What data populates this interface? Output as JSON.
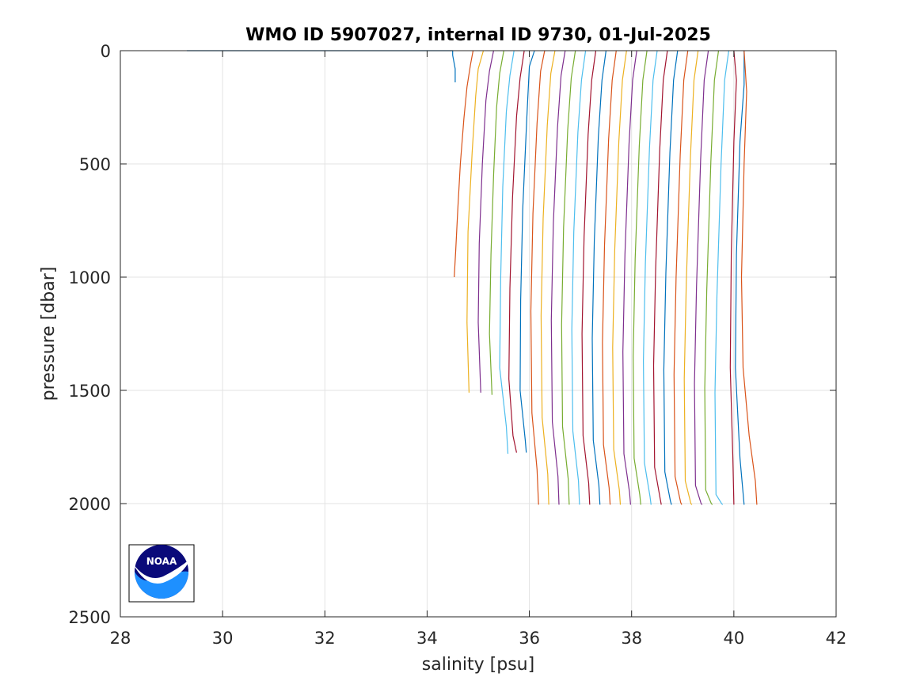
{
  "chart_data": {
    "type": "line",
    "title": "WMO ID 5907027, internal ID 9730, 01-Jul-2025",
    "xlabel": "salinity [psu]",
    "ylabel": "pressure [dbar]",
    "xlim": [
      28,
      42
    ],
    "ylim": [
      0,
      2500
    ],
    "y_reversed": true,
    "grid": true,
    "legend": "none",
    "x_ticks": [
      "28",
      "30",
      "32",
      "34",
      "36",
      "38",
      "40",
      "42"
    ],
    "y_ticks": [
      "0",
      "500",
      "1000",
      "1500",
      "2000",
      "2500"
    ],
    "series_colors": [
      "#0072BD",
      "#D95319",
      "#EDB120",
      "#7E2F8E",
      "#77AC30",
      "#4DBEEE",
      "#A2142F"
    ],
    "series": [
      {
        "values": [
          [
            29.3,
            0
          ],
          [
            34.5,
            0
          ],
          [
            34.5,
            20
          ],
          [
            34.55,
            80
          ],
          [
            34.55,
            140
          ]
        ]
      },
      {
        "values": [
          [
            34.9,
            0
          ],
          [
            34.85,
            60
          ],
          [
            34.78,
            160
          ],
          [
            34.72,
            300
          ],
          [
            34.65,
            500
          ],
          [
            34.6,
            700
          ],
          [
            34.56,
            880
          ],
          [
            34.53,
            1000
          ]
        ]
      },
      {
        "values": [
          [
            35.1,
            0
          ],
          [
            35.0,
            80
          ],
          [
            34.95,
            200
          ],
          [
            34.88,
            450
          ],
          [
            34.8,
            800
          ],
          [
            34.78,
            1200
          ],
          [
            34.82,
            1510
          ]
        ]
      },
      {
        "values": [
          [
            35.3,
            0
          ],
          [
            35.22,
            90
          ],
          [
            35.15,
            220
          ],
          [
            35.08,
            500
          ],
          [
            35.02,
            850
          ],
          [
            35.0,
            1200
          ],
          [
            35.05,
            1510
          ]
        ]
      },
      {
        "values": [
          [
            35.5,
            0
          ],
          [
            35.42,
            100
          ],
          [
            35.36,
            250
          ],
          [
            35.3,
            550
          ],
          [
            35.25,
            900
          ],
          [
            35.22,
            1250
          ],
          [
            35.27,
            1520
          ]
        ]
      },
      {
        "values": [
          [
            35.7,
            0
          ],
          [
            35.62,
            110
          ],
          [
            35.55,
            270
          ],
          [
            35.48,
            600
          ],
          [
            35.44,
            1000
          ],
          [
            35.42,
            1400
          ],
          [
            35.55,
            1660
          ],
          [
            35.58,
            1780
          ]
        ]
      },
      {
        "values": [
          [
            35.9,
            0
          ],
          [
            35.82,
            120
          ],
          [
            35.75,
            290
          ],
          [
            35.67,
            650
          ],
          [
            35.62,
            1050
          ],
          [
            35.6,
            1450
          ],
          [
            35.68,
            1700
          ],
          [
            35.75,
            1775
          ]
        ]
      },
      {
        "values": [
          [
            36.1,
            0
          ],
          [
            36.0,
            70
          ],
          [
            35.95,
            300
          ],
          [
            35.87,
            700
          ],
          [
            35.83,
            1100
          ],
          [
            35.82,
            1500
          ],
          [
            35.92,
            1720
          ],
          [
            35.94,
            1775
          ]
        ]
      },
      {
        "values": [
          [
            36.3,
            0
          ],
          [
            36.22,
            90
          ],
          [
            36.15,
            320
          ],
          [
            36.07,
            720
          ],
          [
            36.03,
            1150
          ],
          [
            36.05,
            1600
          ],
          [
            36.15,
            1850
          ],
          [
            36.18,
            2005
          ]
        ]
      },
      {
        "values": [
          [
            36.5,
            0
          ],
          [
            36.42,
            100
          ],
          [
            36.35,
            330
          ],
          [
            36.27,
            740
          ],
          [
            36.23,
            1170
          ],
          [
            36.25,
            1620
          ],
          [
            36.36,
            1870
          ],
          [
            36.38,
            2005
          ]
        ]
      },
      {
        "values": [
          [
            36.7,
            0
          ],
          [
            36.62,
            110
          ],
          [
            36.55,
            340
          ],
          [
            36.47,
            760
          ],
          [
            36.43,
            1190
          ],
          [
            36.45,
            1640
          ],
          [
            36.56,
            1880
          ],
          [
            36.58,
            2005
          ]
        ]
      },
      {
        "values": [
          [
            36.9,
            0
          ],
          [
            36.82,
            120
          ],
          [
            36.75,
            350
          ],
          [
            36.67,
            780
          ],
          [
            36.63,
            1210
          ],
          [
            36.65,
            1660
          ],
          [
            36.76,
            1890
          ],
          [
            36.78,
            2005
          ]
        ]
      },
      {
        "values": [
          [
            37.1,
            0
          ],
          [
            37.02,
            130
          ],
          [
            36.95,
            360
          ],
          [
            36.87,
            800
          ],
          [
            36.83,
            1230
          ],
          [
            36.85,
            1680
          ],
          [
            36.96,
            1900
          ],
          [
            36.98,
            2005
          ]
        ]
      },
      {
        "values": [
          [
            37.3,
            0
          ],
          [
            37.22,
            130
          ],
          [
            37.15,
            370
          ],
          [
            37.07,
            820
          ],
          [
            37.03,
            1250
          ],
          [
            37.05,
            1700
          ],
          [
            37.16,
            1910
          ],
          [
            37.18,
            2005
          ]
        ]
      },
      {
        "values": [
          [
            37.5,
            0
          ],
          [
            37.42,
            130
          ],
          [
            37.35,
            380
          ],
          [
            37.27,
            840
          ],
          [
            37.23,
            1270
          ],
          [
            37.25,
            1720
          ],
          [
            37.36,
            1920
          ],
          [
            37.38,
            2005
          ]
        ]
      },
      {
        "values": [
          [
            37.7,
            0
          ],
          [
            37.62,
            130
          ],
          [
            37.55,
            390
          ],
          [
            37.47,
            860
          ],
          [
            37.43,
            1290
          ],
          [
            37.45,
            1740
          ],
          [
            37.56,
            1930
          ],
          [
            37.58,
            2005
          ]
        ]
      },
      {
        "values": [
          [
            37.9,
            0
          ],
          [
            37.82,
            130
          ],
          [
            37.75,
            400
          ],
          [
            37.67,
            880
          ],
          [
            37.63,
            1310
          ],
          [
            37.65,
            1760
          ],
          [
            37.76,
            1940
          ],
          [
            37.78,
            2005
          ]
        ]
      },
      {
        "values": [
          [
            38.1,
            0
          ],
          [
            38.02,
            130
          ],
          [
            37.95,
            410
          ],
          [
            37.87,
            900
          ],
          [
            37.83,
            1330
          ],
          [
            37.85,
            1780
          ],
          [
            37.96,
            1950
          ],
          [
            37.98,
            2005
          ]
        ]
      },
      {
        "values": [
          [
            38.3,
            0
          ],
          [
            38.22,
            130
          ],
          [
            38.15,
            420
          ],
          [
            38.07,
            920
          ],
          [
            38.03,
            1350
          ],
          [
            38.05,
            1800
          ],
          [
            38.16,
            1960
          ],
          [
            38.18,
            2005
          ]
        ]
      },
      {
        "values": [
          [
            38.5,
            0
          ],
          [
            38.42,
            130
          ],
          [
            38.35,
            430
          ],
          [
            38.27,
            940
          ],
          [
            38.23,
            1370
          ],
          [
            38.25,
            1820
          ],
          [
            38.36,
            1970
          ],
          [
            38.38,
            2005
          ]
        ]
      },
      {
        "values": [
          [
            38.7,
            0
          ],
          [
            38.62,
            130
          ],
          [
            38.55,
            440
          ],
          [
            38.47,
            960
          ],
          [
            38.43,
            1390
          ],
          [
            38.45,
            1840
          ],
          [
            38.56,
            1980
          ],
          [
            38.58,
            2005
          ]
        ]
      },
      {
        "values": [
          [
            38.9,
            0
          ],
          [
            38.82,
            130
          ],
          [
            38.75,
            450
          ],
          [
            38.67,
            980
          ],
          [
            38.63,
            1410
          ],
          [
            38.65,
            1860
          ],
          [
            38.76,
            1990
          ],
          [
            38.78,
            2005
          ]
        ]
      },
      {
        "values": [
          [
            39.1,
            0
          ],
          [
            39.02,
            130
          ],
          [
            38.95,
            460
          ],
          [
            38.87,
            1000
          ],
          [
            38.83,
            1430
          ],
          [
            38.85,
            1880
          ],
          [
            38.96,
            1995
          ],
          [
            38.98,
            2005
          ]
        ]
      },
      {
        "values": [
          [
            39.3,
            0
          ],
          [
            39.22,
            130
          ],
          [
            39.15,
            470
          ],
          [
            39.07,
            1020
          ],
          [
            39.03,
            1450
          ],
          [
            39.05,
            1900
          ],
          [
            39.16,
            2000
          ],
          [
            39.18,
            2005
          ]
        ]
      },
      {
        "values": [
          [
            39.5,
            0
          ],
          [
            39.42,
            130
          ],
          [
            39.35,
            480
          ],
          [
            39.27,
            1040
          ],
          [
            39.23,
            1470
          ],
          [
            39.25,
            1920
          ],
          [
            39.36,
            2000
          ],
          [
            39.38,
            2005
          ]
        ]
      },
      {
        "values": [
          [
            39.7,
            0
          ],
          [
            39.62,
            130
          ],
          [
            39.55,
            490
          ],
          [
            39.47,
            1060
          ],
          [
            39.43,
            1490
          ],
          [
            39.45,
            1940
          ],
          [
            39.56,
            2000
          ],
          [
            39.58,
            2005
          ]
        ]
      },
      {
        "values": [
          [
            39.9,
            0
          ],
          [
            39.82,
            130
          ],
          [
            39.75,
            500
          ],
          [
            39.67,
            1080
          ],
          [
            39.63,
            1510
          ],
          [
            39.65,
            1960
          ],
          [
            39.76,
            2000
          ],
          [
            39.78,
            2005
          ]
        ]
      },
      {
        "values": [
          [
            40.0,
            0
          ],
          [
            40.05,
            130
          ],
          [
            40.0,
            400
          ],
          [
            39.95,
            900
          ],
          [
            39.93,
            1400
          ],
          [
            39.98,
            1800
          ],
          [
            40.0,
            2005
          ]
        ]
      },
      {
        "values": [
          [
            40.2,
            0
          ],
          [
            40.2,
            150
          ],
          [
            40.12,
            400
          ],
          [
            40.05,
            900
          ],
          [
            40.03,
            1400
          ],
          [
            40.12,
            1800
          ],
          [
            40.2,
            2005
          ]
        ]
      },
      {
        "values": [
          [
            40.2,
            0
          ],
          [
            40.25,
            180
          ],
          [
            40.2,
            500
          ],
          [
            40.15,
            1000
          ],
          [
            40.18,
            1400
          ],
          [
            40.3,
            1700
          ],
          [
            40.42,
            1900
          ],
          [
            40.45,
            2005
          ]
        ]
      }
    ]
  },
  "logo": {
    "text": "NOAA"
  }
}
